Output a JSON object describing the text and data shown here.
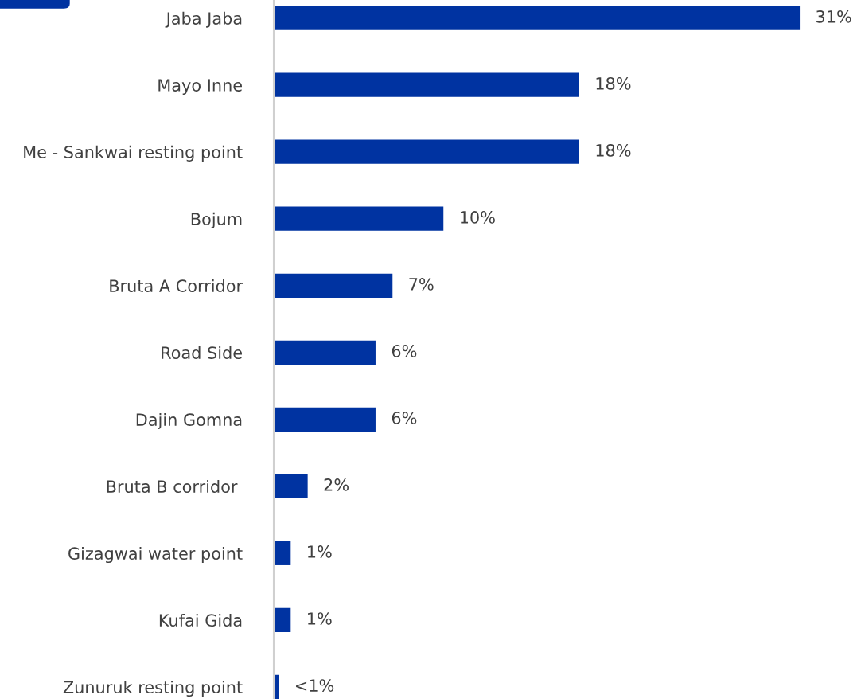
{
  "chart_data": {
    "type": "bar",
    "orientation": "horizontal",
    "categories": [
      "Jaba Jaba",
      "Mayo Inne",
      "Me - Sankwai resting point",
      "Bojum",
      "Bruta A Corridor",
      "Road Side",
      "Dajin Gomna",
      "Bruta B corridor ",
      "Gizagwai water point",
      "Kufai Gida",
      "Zunuruk resting point"
    ],
    "values": [
      31,
      18,
      18,
      10,
      7,
      6,
      6,
      2,
      1,
      1,
      0.3
    ],
    "value_labels": [
      "31%",
      "18%",
      "18%",
      "10%",
      "7%",
      "6%",
      "6%",
      "2%",
      "1%",
      "1%",
      "<1%"
    ],
    "color": "#0033a1",
    "grid": false,
    "tick_labels": "y"
  }
}
